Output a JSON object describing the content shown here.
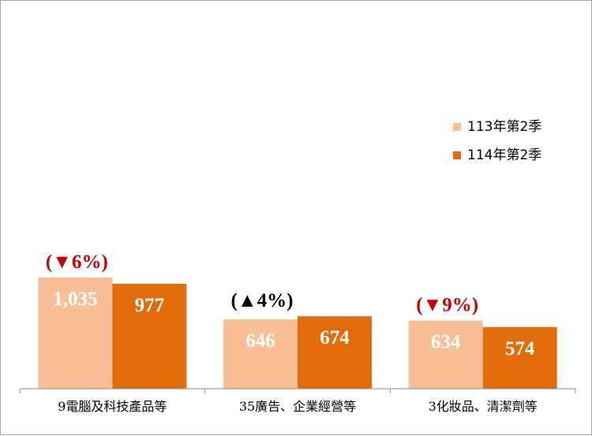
{
  "chart_data": {
    "type": "bar",
    "categories": [
      "9電腦及科技產品等",
      "35廣告、企業經營等",
      "3化妝品、清潔劑等"
    ],
    "series": [
      {
        "name": "113年第2季",
        "color": "#f8bf96",
        "values": [
          1035,
          646,
          634
        ],
        "labels": [
          "1,035",
          "646",
          "634"
        ]
      },
      {
        "name": "114年第2季",
        "color": "#e36c0a",
        "values": [
          977,
          674,
          574
        ],
        "labels": [
          "977",
          "674",
          "574"
        ]
      }
    ],
    "changes": [
      {
        "text": "(▼6%)",
        "color": "#cc0000"
      },
      {
        "text": "(▲4%)",
        "color": "#000000"
      },
      {
        "text": "(▼9%)",
        "color": "#cc0000"
      }
    ],
    "ylim": [
      0,
      3000
    ],
    "grid": false,
    "legend_position": "right"
  }
}
